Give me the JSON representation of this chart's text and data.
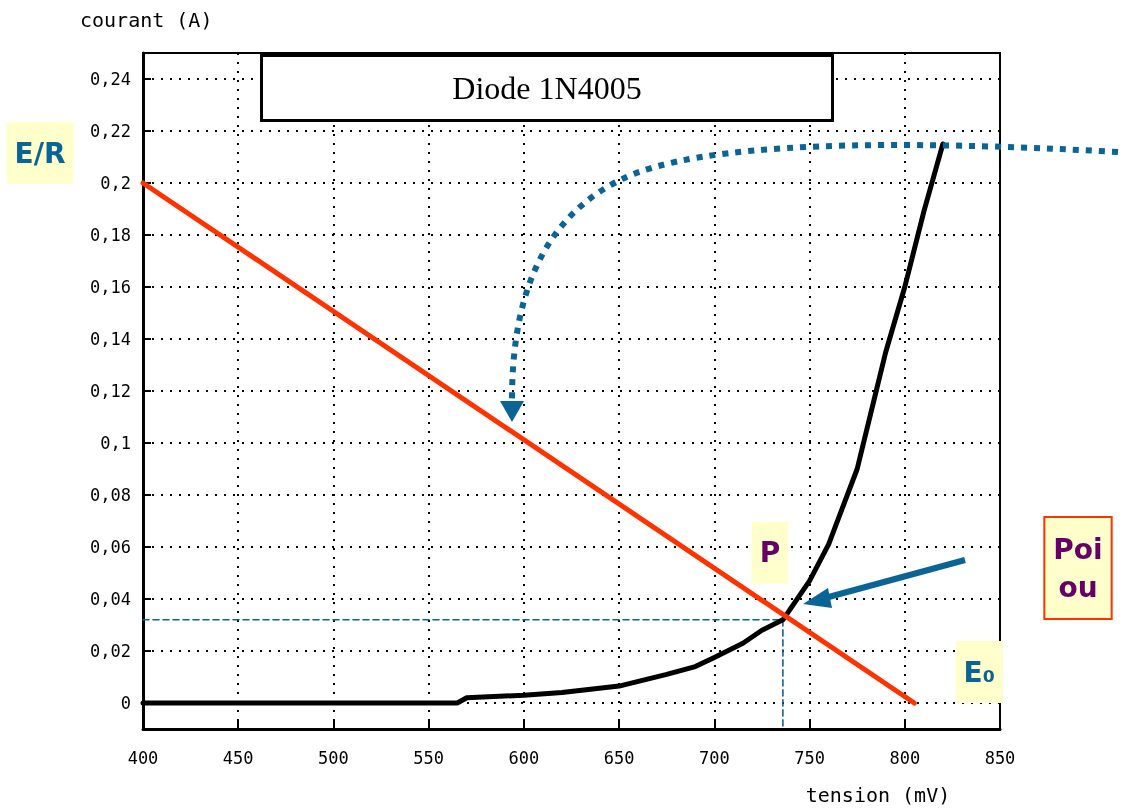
{
  "chart_data": {
    "type": "line",
    "title": "Diode 1N4005",
    "xlabel": "tension (mV)",
    "ylabel": "courant (A)",
    "xlim": [
      400,
      850
    ],
    "xticks": [
      400,
      450,
      500,
      550,
      600,
      650,
      700,
      750,
      800,
      850
    ],
    "ylim": [
      -0.01,
      0.25
    ],
    "yticks": [
      0,
      {
        "value": 0.02,
        "label": "0,02"
      },
      {
        "value": 0.04,
        "label": "0,04"
      },
      {
        "value": 0.06,
        "label": "0,06"
      },
      {
        "value": 0.08,
        "label": "0,08"
      },
      {
        "value": 0.1,
        "label": "0,1"
      },
      {
        "value": 0.12,
        "label": "0,12"
      },
      {
        "value": 0.14,
        "label": "0,14"
      },
      {
        "value": 0.16,
        "label": "0,16"
      },
      {
        "value": 0.18,
        "label": "0,18"
      },
      {
        "value": 0.2,
        "label": "0,2"
      },
      {
        "value": 0.22,
        "label": "0,22"
      },
      {
        "value": 0.24,
        "label": "0,24"
      }
    ],
    "grid": true,
    "marker": "none",
    "line_style": "solid",
    "series": [
      {
        "color": "#000000",
        "x": [
          400,
          500,
          565,
          570,
          600,
          620,
          650,
          675,
          690,
          700,
          715,
          725,
          736,
          750,
          760,
          775,
          782,
          790,
          800,
          810,
          820
        ],
        "values": [
          0,
          0,
          0,
          0.002,
          0.003,
          0.004,
          0.0065,
          0.011,
          0.014,
          0.0175,
          0.023,
          0.028,
          0.032,
          0.047,
          0.061,
          0.09,
          0.111,
          0.135,
          0.16,
          0.189,
          0.215
        ]
      },
      {
        "color": "#ff3300",
        "x": [
          400,
          805
        ],
        "values": [
          0.2,
          0
        ]
      },
      {
        "color": "#0a6496",
        "line_style": "dashed",
        "x": [
          400,
          736,
          736
        ],
        "values": [
          0.032,
          0.032,
          -0.01
        ]
      }
    ],
    "annotations": [
      {
        "text": "E/R",
        "x": 400,
        "y": 0.2
      },
      {
        "text": "P",
        "x": 736,
        "y": 0.032
      },
      {
        "text": "E₀",
        "x": 805,
        "y": 0
      },
      "Poi\nou"
    ]
  }
}
